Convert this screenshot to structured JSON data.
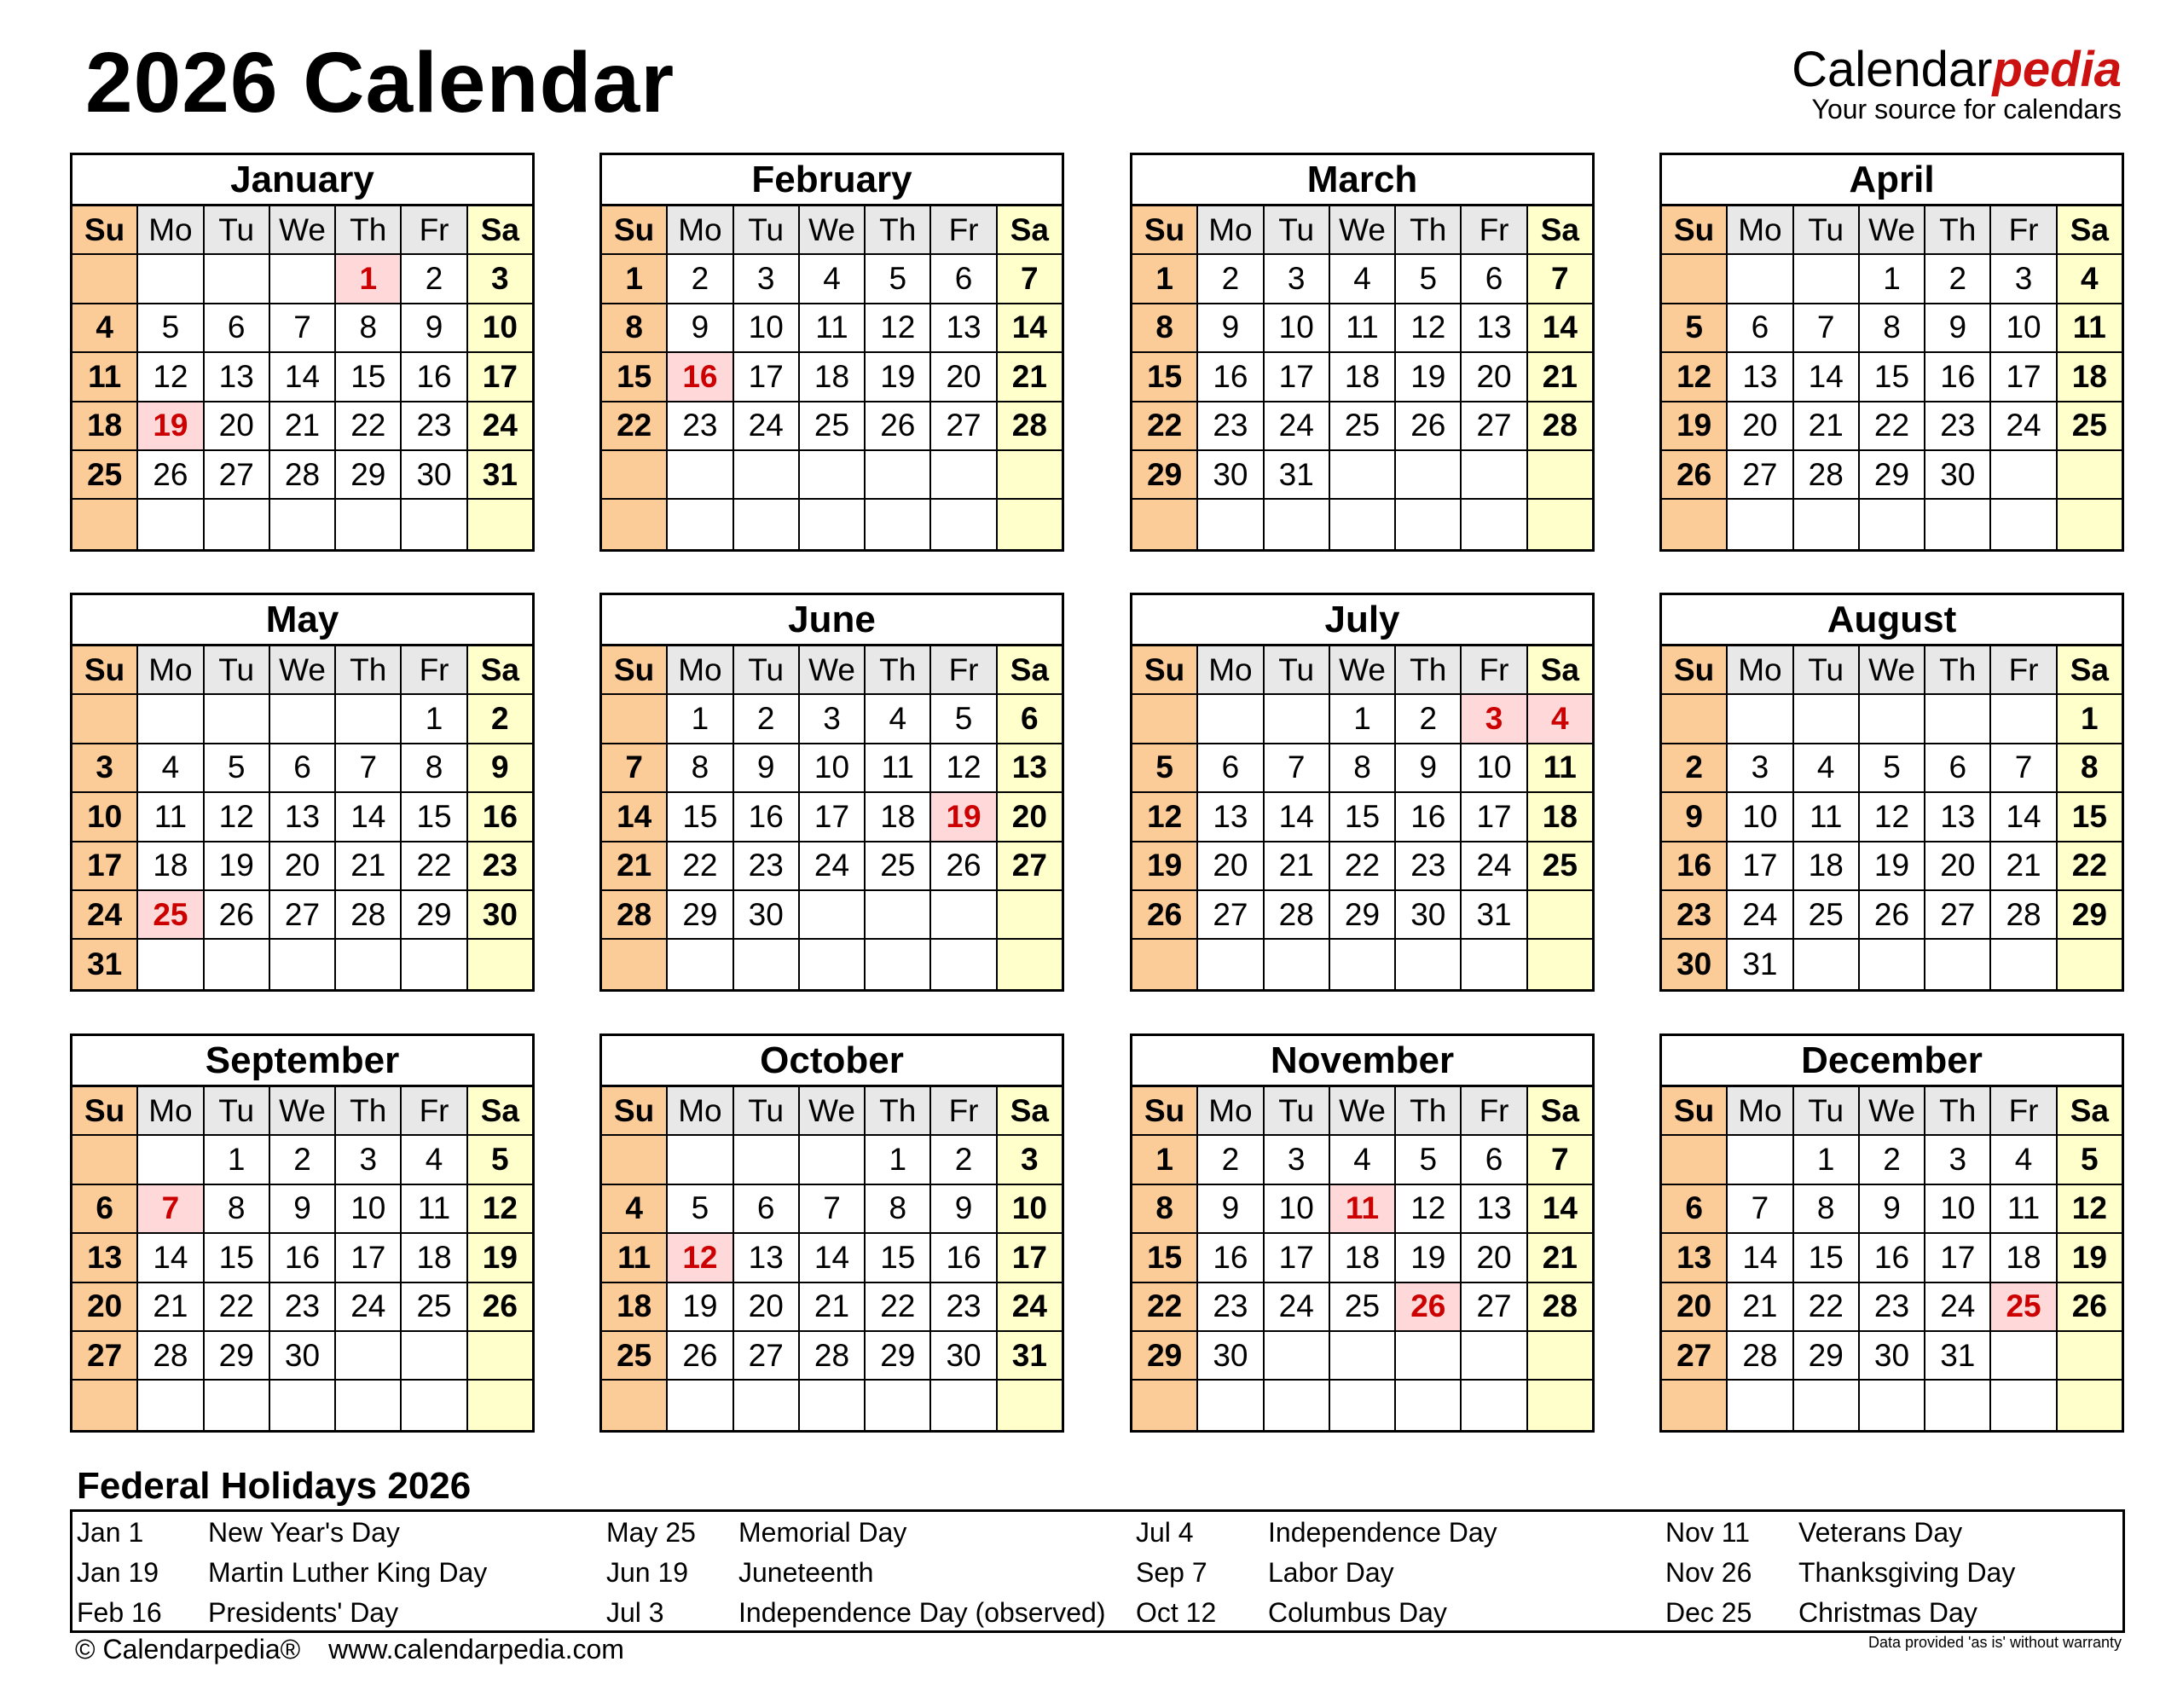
{
  "title": "2026 Calendar",
  "logo": {
    "brand_a": "Calendar",
    "brand_b": "pedia",
    "tagline": "Your source for calendars"
  },
  "colors": {
    "sunday": "#fbcb98",
    "saturday": "#ffffcc",
    "weekday_header": "#e8e8e8",
    "holiday_bg": "#ffd9d9",
    "holiday_text": "#cc0000",
    "brand": "#cc1111"
  },
  "weekdays": [
    "Su",
    "Mo",
    "Tu",
    "We",
    "Th",
    "Fr",
    "Sa"
  ],
  "months": [
    {
      "name": "January",
      "holidays": [
        "1",
        "19"
      ],
      "weeks": [
        [
          "",
          "",
          "",
          "",
          "1",
          "2",
          "3"
        ],
        [
          "4",
          "5",
          "6",
          "7",
          "8",
          "9",
          "10"
        ],
        [
          "11",
          "12",
          "13",
          "14",
          "15",
          "16",
          "17"
        ],
        [
          "18",
          "19",
          "20",
          "21",
          "22",
          "23",
          "24"
        ],
        [
          "25",
          "26",
          "27",
          "28",
          "29",
          "30",
          "31"
        ],
        [
          "",
          "",
          "",
          "",
          "",
          "",
          ""
        ]
      ]
    },
    {
      "name": "February",
      "holidays": [
        "16"
      ],
      "weeks": [
        [
          "1",
          "2",
          "3",
          "4",
          "5",
          "6",
          "7"
        ],
        [
          "8",
          "9",
          "10",
          "11",
          "12",
          "13",
          "14"
        ],
        [
          "15",
          "16",
          "17",
          "18",
          "19",
          "20",
          "21"
        ],
        [
          "22",
          "23",
          "24",
          "25",
          "26",
          "27",
          "28"
        ],
        [
          "",
          "",
          "",
          "",
          "",
          "",
          ""
        ],
        [
          "",
          "",
          "",
          "",
          "",
          "",
          ""
        ]
      ]
    },
    {
      "name": "March",
      "holidays": [],
      "weeks": [
        [
          "1",
          "2",
          "3",
          "4",
          "5",
          "6",
          "7"
        ],
        [
          "8",
          "9",
          "10",
          "11",
          "12",
          "13",
          "14"
        ],
        [
          "15",
          "16",
          "17",
          "18",
          "19",
          "20",
          "21"
        ],
        [
          "22",
          "23",
          "24",
          "25",
          "26",
          "27",
          "28"
        ],
        [
          "29",
          "30",
          "31",
          "",
          "",
          "",
          ""
        ],
        [
          "",
          "",
          "",
          "",
          "",
          "",
          ""
        ]
      ]
    },
    {
      "name": "April",
      "holidays": [],
      "weeks": [
        [
          "",
          "",
          "",
          "1",
          "2",
          "3",
          "4"
        ],
        [
          "5",
          "6",
          "7",
          "8",
          "9",
          "10",
          "11"
        ],
        [
          "12",
          "13",
          "14",
          "15",
          "16",
          "17",
          "18"
        ],
        [
          "19",
          "20",
          "21",
          "22",
          "23",
          "24",
          "25"
        ],
        [
          "26",
          "27",
          "28",
          "29",
          "30",
          "",
          ""
        ],
        [
          "",
          "",
          "",
          "",
          "",
          "",
          ""
        ]
      ]
    },
    {
      "name": "May",
      "holidays": [
        "25"
      ],
      "weeks": [
        [
          "",
          "",
          "",
          "",
          "",
          "1",
          "2"
        ],
        [
          "3",
          "4",
          "5",
          "6",
          "7",
          "8",
          "9"
        ],
        [
          "10",
          "11",
          "12",
          "13",
          "14",
          "15",
          "16"
        ],
        [
          "17",
          "18",
          "19",
          "20",
          "21",
          "22",
          "23"
        ],
        [
          "24",
          "25",
          "26",
          "27",
          "28",
          "29",
          "30"
        ],
        [
          "31",
          "",
          "",
          "",
          "",
          "",
          ""
        ]
      ]
    },
    {
      "name": "June",
      "holidays": [
        "19"
      ],
      "weeks": [
        [
          "",
          "1",
          "2",
          "3",
          "4",
          "5",
          "6"
        ],
        [
          "7",
          "8",
          "9",
          "10",
          "11",
          "12",
          "13"
        ],
        [
          "14",
          "15",
          "16",
          "17",
          "18",
          "19",
          "20"
        ],
        [
          "21",
          "22",
          "23",
          "24",
          "25",
          "26",
          "27"
        ],
        [
          "28",
          "29",
          "30",
          "",
          "",
          "",
          ""
        ],
        [
          "",
          "",
          "",
          "",
          "",
          "",
          ""
        ]
      ]
    },
    {
      "name": "July",
      "holidays": [
        "3",
        "4"
      ],
      "weeks": [
        [
          "",
          "",
          "",
          "1",
          "2",
          "3",
          "4"
        ],
        [
          "5",
          "6",
          "7",
          "8",
          "9",
          "10",
          "11"
        ],
        [
          "12",
          "13",
          "14",
          "15",
          "16",
          "17",
          "18"
        ],
        [
          "19",
          "20",
          "21",
          "22",
          "23",
          "24",
          "25"
        ],
        [
          "26",
          "27",
          "28",
          "29",
          "30",
          "31",
          ""
        ],
        [
          "",
          "",
          "",
          "",
          "",
          "",
          ""
        ]
      ]
    },
    {
      "name": "August",
      "holidays": [],
      "weeks": [
        [
          "",
          "",
          "",
          "",
          "",
          "",
          "1"
        ],
        [
          "2",
          "3",
          "4",
          "5",
          "6",
          "7",
          "8"
        ],
        [
          "9",
          "10",
          "11",
          "12",
          "13",
          "14",
          "15"
        ],
        [
          "16",
          "17",
          "18",
          "19",
          "20",
          "21",
          "22"
        ],
        [
          "23",
          "24",
          "25",
          "26",
          "27",
          "28",
          "29"
        ],
        [
          "30",
          "31",
          "",
          "",
          "",
          "",
          ""
        ]
      ]
    },
    {
      "name": "September",
      "holidays": [
        "7"
      ],
      "weeks": [
        [
          "",
          "",
          "1",
          "2",
          "3",
          "4",
          "5"
        ],
        [
          "6",
          "7",
          "8",
          "9",
          "10",
          "11",
          "12"
        ],
        [
          "13",
          "14",
          "15",
          "16",
          "17",
          "18",
          "19"
        ],
        [
          "20",
          "21",
          "22",
          "23",
          "24",
          "25",
          "26"
        ],
        [
          "27",
          "28",
          "29",
          "30",
          "",
          "",
          ""
        ],
        [
          "",
          "",
          "",
          "",
          "",
          "",
          ""
        ]
      ]
    },
    {
      "name": "October",
      "holidays": [
        "12"
      ],
      "weeks": [
        [
          "",
          "",
          "",
          "",
          "1",
          "2",
          "3"
        ],
        [
          "4",
          "5",
          "6",
          "7",
          "8",
          "9",
          "10"
        ],
        [
          "11",
          "12",
          "13",
          "14",
          "15",
          "16",
          "17"
        ],
        [
          "18",
          "19",
          "20",
          "21",
          "22",
          "23",
          "24"
        ],
        [
          "25",
          "26",
          "27",
          "28",
          "29",
          "30",
          "31"
        ],
        [
          "",
          "",
          "",
          "",
          "",
          "",
          ""
        ]
      ]
    },
    {
      "name": "November",
      "holidays": [
        "11",
        "26"
      ],
      "weeks": [
        [
          "1",
          "2",
          "3",
          "4",
          "5",
          "6",
          "7"
        ],
        [
          "8",
          "9",
          "10",
          "11",
          "12",
          "13",
          "14"
        ],
        [
          "15",
          "16",
          "17",
          "18",
          "19",
          "20",
          "21"
        ],
        [
          "22",
          "23",
          "24",
          "25",
          "26",
          "27",
          "28"
        ],
        [
          "29",
          "30",
          "",
          "",
          "",
          "",
          ""
        ],
        [
          "",
          "",
          "",
          "",
          "",
          "",
          ""
        ]
      ]
    },
    {
      "name": "December",
      "holidays": [
        "25"
      ],
      "weeks": [
        [
          "",
          "",
          "1",
          "2",
          "3",
          "4",
          "5"
        ],
        [
          "6",
          "7",
          "8",
          "9",
          "10",
          "11",
          "12"
        ],
        [
          "13",
          "14",
          "15",
          "16",
          "17",
          "18",
          "19"
        ],
        [
          "20",
          "21",
          "22",
          "23",
          "24",
          "25",
          "26"
        ],
        [
          "27",
          "28",
          "29",
          "30",
          "31",
          "",
          ""
        ],
        [
          "",
          "",
          "",
          "",
          "",
          "",
          ""
        ]
      ]
    }
  ],
  "holidays": {
    "title": "Federal Holidays 2026",
    "columns": [
      [
        {
          "date": "Jan 1",
          "name": "New Year's Day"
        },
        {
          "date": "Jan 19",
          "name": "Martin Luther King Day"
        },
        {
          "date": "Feb 16",
          "name": "Presidents' Day"
        }
      ],
      [
        {
          "date": "May 25",
          "name": "Memorial Day"
        },
        {
          "date": "Jun 19",
          "name": "Juneteenth"
        },
        {
          "date": "Jul 3",
          "name": "Independence Day (observed)"
        }
      ],
      [
        {
          "date": "Jul 4",
          "name": "Independence Day"
        },
        {
          "date": "Sep 7",
          "name": "Labor Day"
        },
        {
          "date": "Oct 12",
          "name": "Columbus Day"
        }
      ],
      [
        {
          "date": "Nov 11",
          "name": "Veterans Day"
        },
        {
          "date": "Nov 26",
          "name": "Thanksgiving Day"
        },
        {
          "date": "Dec 25",
          "name": "Christmas Day"
        }
      ]
    ]
  },
  "footer": {
    "copyright": "© Calendarpedia®",
    "url": "www.calendarpedia.com",
    "disclaimer": "Data provided 'as is' without warranty"
  }
}
